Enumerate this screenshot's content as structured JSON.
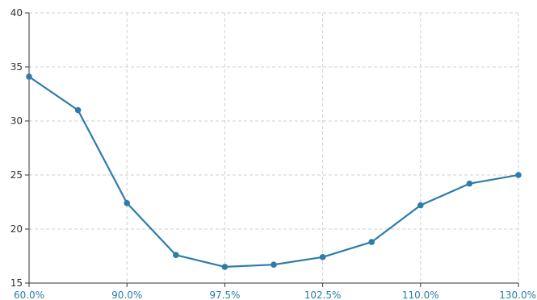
{
  "chart_data": {
    "type": "line",
    "title": "",
    "xlabel": "",
    "ylabel": "",
    "x_ticks": [
      "60.0%",
      "90.0%",
      "97.5%",
      "102.5%",
      "110.0%",
      "130.0%"
    ],
    "y_ticks": [
      "15",
      "20",
      "25",
      "30",
      "35",
      "40"
    ],
    "ylim": [
      15,
      40
    ],
    "grid": true,
    "series": [
      {
        "color": "#2e7ca8",
        "points": [
          34.1,
          31.0,
          22.4,
          17.6,
          16.5,
          16.7,
          17.4,
          18.8,
          22.2,
          24.2,
          25.0
        ]
      }
    ]
  }
}
